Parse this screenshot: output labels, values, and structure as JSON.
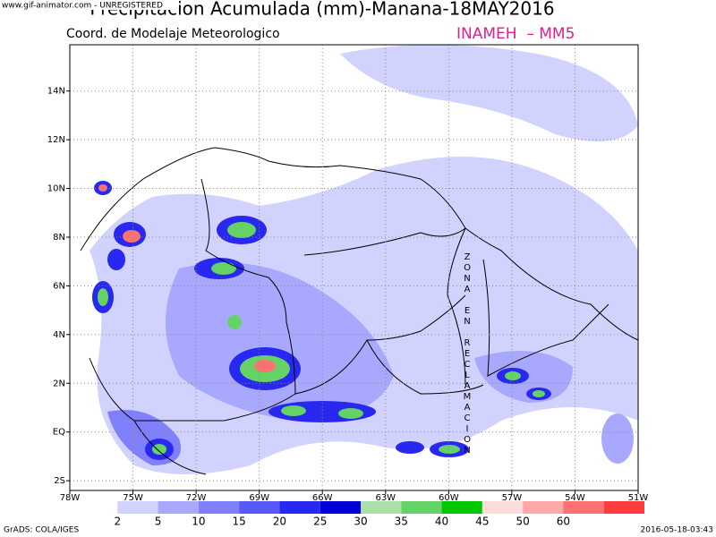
{
  "title": "Precipitacion Acumulada (mm)-Manana-18MAY2016",
  "subtitle": "Coord. de Modelaje Meteorologico",
  "source": "INAMEH  – MM5",
  "watermark": "www.gif-animator.com - UNREGISTERED",
  "annotation": "ZONA EN RECLAMACION",
  "footer_left": "GrADS: COLA/IGES",
  "footer_right": "2016-05-18-03:43",
  "map": {
    "xlim": [
      -78,
      -51
    ],
    "ylim": [
      -2.4,
      15.9
    ],
    "xticks": [
      {
        "value": -78,
        "label": "78W"
      },
      {
        "value": -75,
        "label": "75W"
      },
      {
        "value": -72,
        "label": "72W"
      },
      {
        "value": -69,
        "label": "69W"
      },
      {
        "value": -66,
        "label": "66W"
      },
      {
        "value": -63,
        "label": "63W"
      },
      {
        "value": -60,
        "label": "60W"
      },
      {
        "value": -57,
        "label": "57W"
      },
      {
        "value": -54,
        "label": "54W"
      },
      {
        "value": -51,
        "label": "51W"
      }
    ],
    "yticks": [
      {
        "value": -2,
        "label": "2S"
      },
      {
        "value": 0,
        "label": "EQ"
      },
      {
        "value": 2,
        "label": "2N"
      },
      {
        "value": 4,
        "label": "4N"
      },
      {
        "value": 6,
        "label": "6N"
      },
      {
        "value": 8,
        "label": "8N"
      },
      {
        "value": 10,
        "label": "10N"
      },
      {
        "value": 12,
        "label": "12N"
      },
      {
        "value": 14,
        "label": "14N"
      }
    ],
    "grid": true
  },
  "legend": {
    "levels": [
      2,
      5,
      10,
      15,
      20,
      25,
      30,
      35,
      40,
      45,
      50,
      60
    ],
    "colors": [
      "#ffffff",
      "#d2d2ff",
      "#a8a8ff",
      "#8080ff",
      "#5858f8",
      "#2828f0",
      "#0000d8",
      "#a8e0a8",
      "#64d264",
      "#00c800",
      "#ffdcdc",
      "#ffa8a8",
      "#ff7070",
      "#ff3c3c"
    ]
  }
}
